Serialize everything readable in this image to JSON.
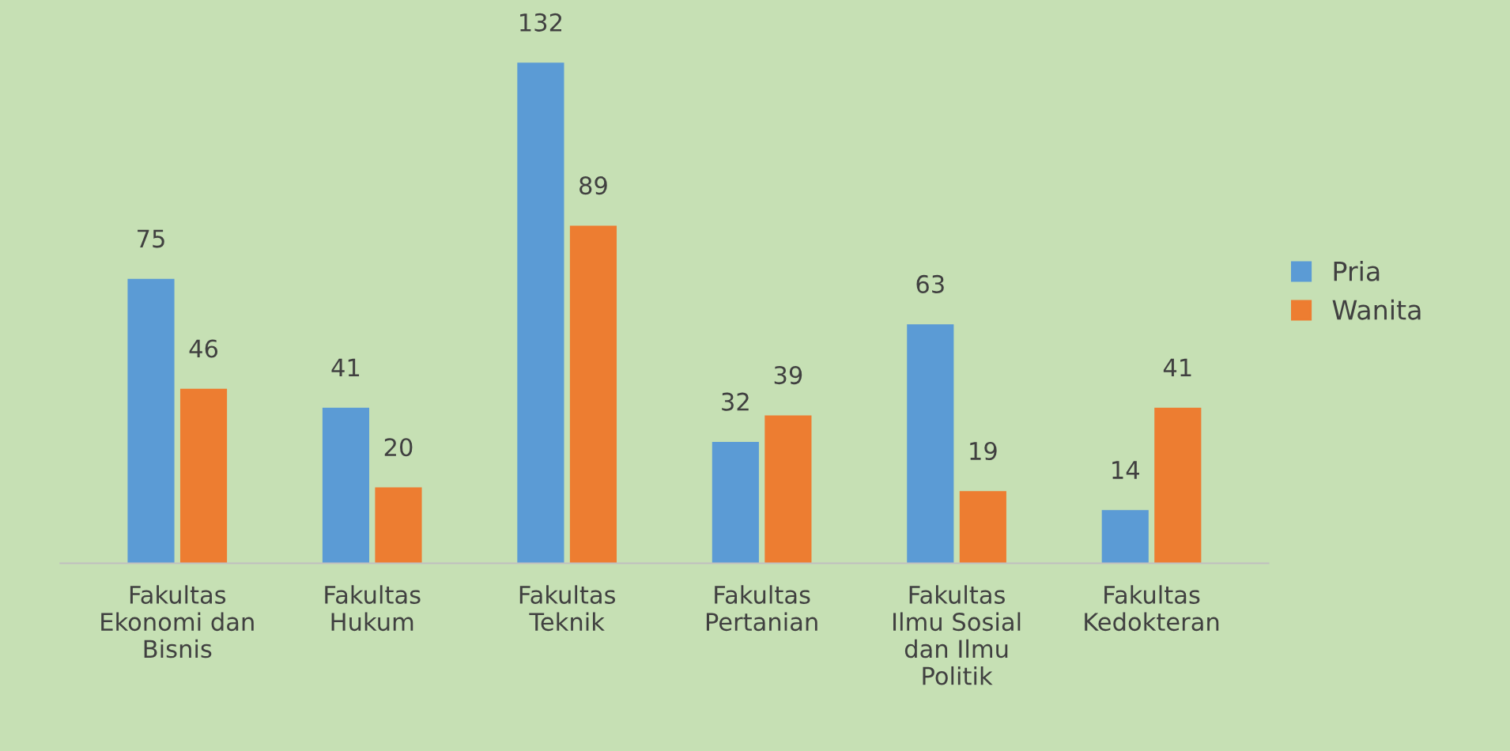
{
  "chart_data": {
    "type": "bar",
    "categories": [
      "Fakultas\nEkonomi dan\nBisnis",
      "Fakultas\nHukum",
      "Fakultas\nTeknik",
      "Fakultas\nPertanian",
      "Fakultas\nIlmu Sosial\ndan Ilmu\nPolitik",
      "Fakultas\nKedokteran"
    ],
    "series": [
      {
        "name": "Pria",
        "color": "#5b9bd5",
        "values": [
          75,
          41,
          132,
          32,
          63,
          14
        ]
      },
      {
        "name": "Wanita",
        "color": "#ed7d31",
        "values": [
          46,
          20,
          89,
          39,
          19,
          41
        ]
      }
    ],
    "data_labels": true,
    "legend": "right",
    "grid": false
  }
}
